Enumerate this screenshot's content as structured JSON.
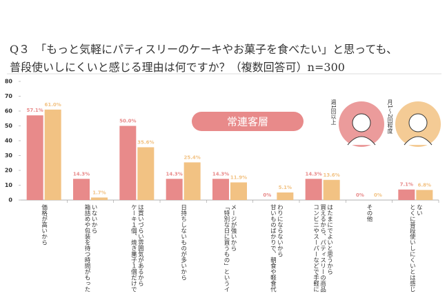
{
  "chart_data": {
    "type": "bar",
    "title": "Q３　「もっと気軽にパティスリーのケーキやお菓子を食べたい」と思っても、",
    "subtitle": "普段使いしにくいと感じる理由は何ですか？（複数回答可）n=300",
    "annotation": "常連客層",
    "categories": [
      "価格が高いから",
      "箱詰めや包装を待つ時間がもったいないから",
      "ケーキ１個、焼き菓子１個だけでは買いづらい雰囲気があるから",
      "日持ちしないものが多いから",
      "「特別な日に買うもの」というイメージが強いから",
      "甘いものばかりで、朝食や軽食代わりにならないから",
      "コンビニやスーパーなどで手軽に買えるから、パティスリーの商品はたまにでよいと思うから",
      "その他",
      "とくに普段使いしにくいとは感じない"
    ],
    "series": [
      {
        "name": "週1回以上",
        "color": "#e88a8a",
        "values": [
          57.1,
          14.3,
          50.0,
          14.3,
          14.3,
          0,
          14.3,
          0,
          7.1
        ],
        "value_labels": [
          "57.1%",
          "14.3%",
          "50.0%",
          "14.3%",
          "14.3%",
          "0%",
          "14.3%",
          "0%",
          "7.1%"
        ]
      },
      {
        "name": "月1～2回程度",
        "color": "#f2c283",
        "values": [
          61.0,
          1.7,
          35.6,
          25.4,
          11.9,
          5.1,
          13.6,
          0,
          6.8
        ],
        "value_labels": [
          "61.0%",
          "1.7%",
          "35.6%",
          "25.4%",
          "11.9%",
          "5.1%",
          "13.6%",
          "0%",
          "6.8%"
        ]
      }
    ],
    "ylim": [
      0,
      80
    ],
    "yticks": [
      0,
      10,
      20,
      30,
      40,
      50,
      60,
      70,
      80
    ],
    "grid": false
  }
}
